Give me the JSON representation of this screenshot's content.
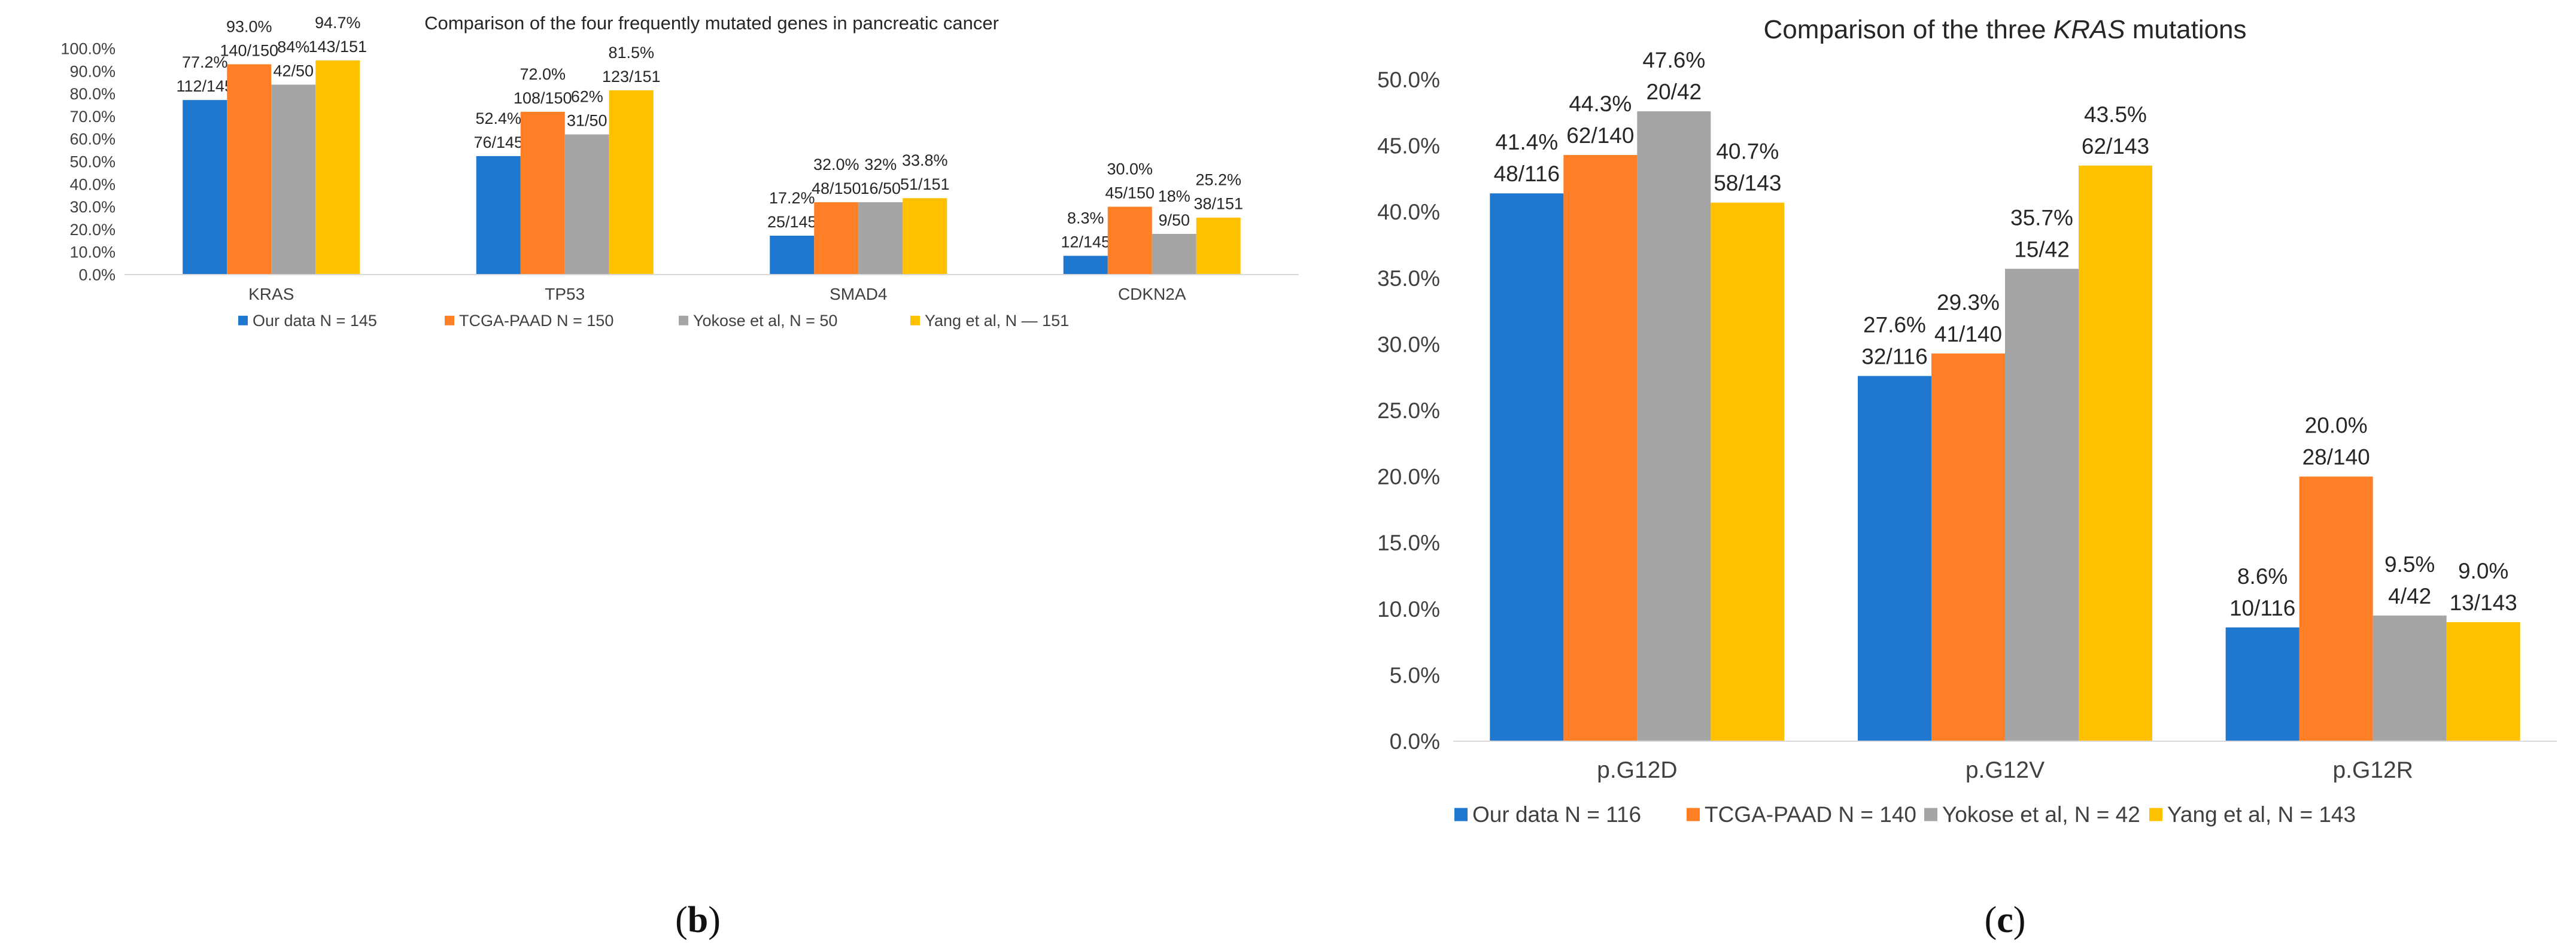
{
  "chart_data": [
    {
      "type": "bar",
      "title": "Comparison of the four frequently mutated genes in pancreatic cancer",
      "title_italic": "",
      "title_suffix": "",
      "caption": "(b)",
      "caption_letter": "b",
      "categories": [
        "KRAS",
        "TP53",
        "SMAD4",
        "CDKN2A"
      ],
      "ylim": [
        0,
        100
      ],
      "yticks": [
        0,
        10,
        20,
        30,
        40,
        50,
        60,
        70,
        80,
        90,
        100
      ],
      "ytick_labels": [
        "0.0%",
        "10.0%",
        "20.0%",
        "30.0%",
        "40.0%",
        "50.0%",
        "60.0%",
        "70.0%",
        "80.0%",
        "90.0%",
        "100.0%"
      ],
      "grid": false,
      "legend_position": "bottom",
      "series": [
        {
          "name": "Our data N = 145",
          "color": "#1F77D0",
          "values": [
            77.2,
            52.4,
            17.2,
            8.3
          ],
          "labels": [
            [
              "77.2%",
              "112/145"
            ],
            [
              "52.4%",
              "76/145"
            ],
            [
              "17.2%",
              "25/145"
            ],
            [
              "8.3%",
              "12/145"
            ]
          ]
        },
        {
          "name": "TCGA-PAAD N = 150",
          "color": "#FF7F27",
          "values": [
            93.0,
            72.0,
            32.0,
            30.0
          ],
          "labels": [
            [
              "93.0%",
              "140/150"
            ],
            [
              "72.0%",
              "108/150"
            ],
            [
              "32.0%",
              "48/150"
            ],
            [
              "30.0%",
              "45/150"
            ]
          ]
        },
        {
          "name": "Yokose et al, N = 50",
          "color": "#A5A5A5",
          "values": [
            84,
            62,
            32,
            18
          ],
          "labels": [
            [
              "84%",
              "42/50"
            ],
            [
              "62%",
              "31/50"
            ],
            [
              "32%",
              "16/50"
            ],
            [
              "18%",
              "9/50"
            ]
          ]
        },
        {
          "name": "Yang et al, N — 151",
          "color": "#FFC000",
          "values": [
            94.7,
            81.5,
            33.8,
            25.2
          ],
          "labels": [
            [
              "94.7%",
              "143/151"
            ],
            [
              "81.5%",
              "123/151"
            ],
            [
              "33.8%",
              "51/151"
            ],
            [
              "25.2%",
              "38/151"
            ]
          ]
        }
      ]
    },
    {
      "type": "bar",
      "title": "Comparison of the three ",
      "title_italic": "KRAS",
      "title_suffix": " mutations",
      "caption": "(c)",
      "caption_letter": "c",
      "categories": [
        "p.G12D",
        "p.G12V",
        "p.G12R"
      ],
      "ylim": [
        0,
        50
      ],
      "yticks": [
        0,
        5,
        10,
        15,
        20,
        25,
        30,
        35,
        40,
        45,
        50
      ],
      "ytick_labels": [
        "0.0%",
        "5.0%",
        "10.0%",
        "15.0%",
        "20.0%",
        "25.0%",
        "30.0%",
        "35.0%",
        "40.0%",
        "45.0%",
        "50.0%"
      ],
      "grid": false,
      "legend_position": "bottom",
      "series": [
        {
          "name": "Our data N = 116",
          "color": "#1F77D0",
          "values": [
            41.4,
            27.6,
            8.6
          ],
          "labels": [
            [
              "41.4%",
              "48/116"
            ],
            [
              "27.6%",
              "32/116"
            ],
            [
              "8.6%",
              "10/116"
            ]
          ]
        },
        {
          "name": "TCGA-PAAD N = 140",
          "color": "#FF7F27",
          "values": [
            44.3,
            29.3,
            20.0
          ],
          "labels": [
            [
              "44.3%",
              "62/140"
            ],
            [
              "29.3%",
              "41/140"
            ],
            [
              "20.0%",
              "28/140"
            ]
          ]
        },
        {
          "name": "Yokose et al, N = 42",
          "color": "#A5A5A5",
          "values": [
            47.6,
            35.7,
            9.5
          ],
          "labels": [
            [
              "47.6%",
              "20/42"
            ],
            [
              "35.7%",
              "15/42"
            ],
            [
              "9.5%",
              "4/42"
            ]
          ]
        },
        {
          "name": "Yang et al, N = 143",
          "color": "#FFC000",
          "values": [
            40.7,
            43.5,
            9.0
          ],
          "labels": [
            [
              "40.7%",
              "58/143"
            ],
            [
              "43.5%",
              "62/143"
            ],
            [
              "9.0%",
              "13/143"
            ]
          ]
        }
      ]
    }
  ]
}
